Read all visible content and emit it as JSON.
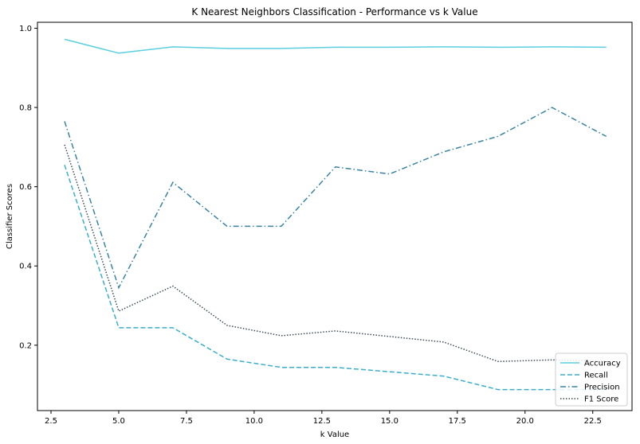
{
  "chart_data": {
    "type": "line",
    "title": "K Nearest Neighbors Classification - Performance vs k Value",
    "xlabel": "k Value",
    "ylabel": "Classifier Scores",
    "xlim": [
      2.0,
      23.95
    ],
    "ylim": [
      0.035,
      1.015
    ],
    "x": [
      3,
      5,
      7,
      9,
      11,
      13,
      15,
      17,
      19,
      21,
      23
    ],
    "xticks": [
      "2.5",
      "5.0",
      "7.5",
      "10.0",
      "12.5",
      "15.0",
      "17.5",
      "20.0",
      "22.5"
    ],
    "yticks": [
      "0.2",
      "0.4",
      "0.6",
      "0.8",
      "1.0"
    ],
    "legend_position": "lower right",
    "series": [
      {
        "name": "Accuracy",
        "style": "solid",
        "color": "#5bcfe0",
        "values": [
          0.972,
          0.937,
          0.953,
          0.949,
          0.949,
          0.952,
          0.952,
          0.953,
          0.952,
          0.953,
          0.952
        ]
      },
      {
        "name": "Recall",
        "style": "dashed",
        "color": "#3aaecb",
        "values": [
          0.655,
          0.244,
          0.244,
          0.165,
          0.144,
          0.144,
          0.133,
          0.122,
          0.088,
          0.088,
          0.088
        ]
      },
      {
        "name": "Precision",
        "style": "dashdot",
        "color": "#3a83a3",
        "values": [
          0.765,
          0.345,
          0.611,
          0.5,
          0.5,
          0.65,
          0.632,
          0.688,
          0.727,
          0.8,
          0.727
        ]
      },
      {
        "name": "F1 Score",
        "style": "dotted",
        "color": "#3d4a57",
        "values": [
          0.706,
          0.286,
          0.349,
          0.25,
          0.224,
          0.236,
          0.222,
          0.208,
          0.159,
          0.163,
          0.16
        ]
      }
    ]
  }
}
